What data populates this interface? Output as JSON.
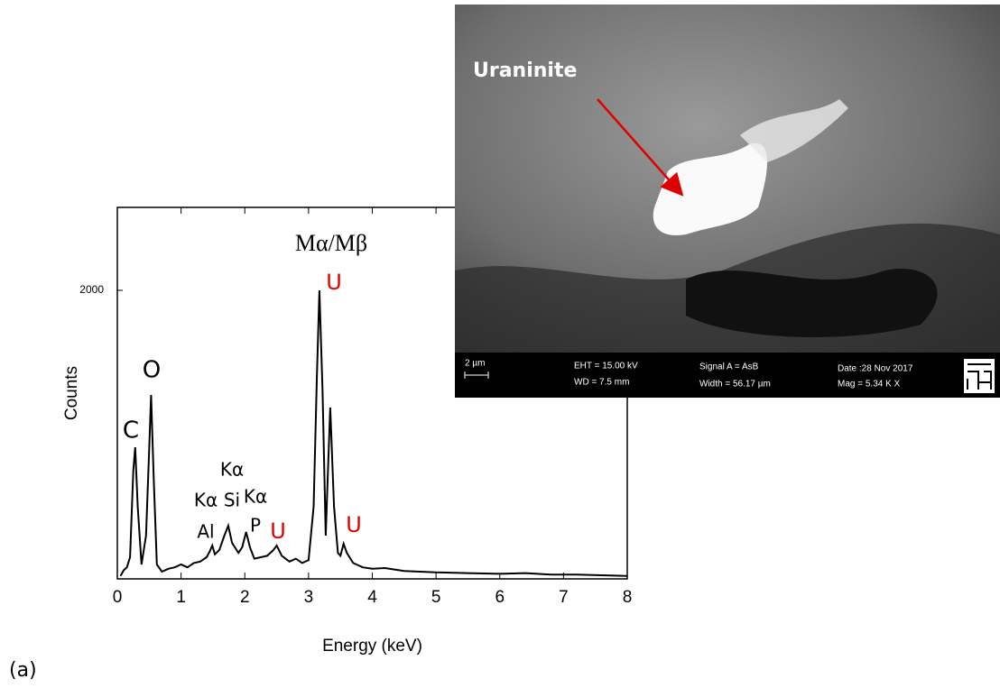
{
  "chart_data": {
    "type": "line",
    "xlabel": "Energy (keV)",
    "ylabel": "Counts",
    "color": "#000000",
    "x": [
      0.05,
      0.1,
      0.15,
      0.2,
      0.25,
      0.28,
      0.32,
      0.38,
      0.45,
      0.5,
      0.53,
      0.57,
      0.62,
      0.7,
      0.8,
      0.9,
      1.0,
      1.1,
      1.2,
      1.3,
      1.4,
      1.45,
      1.49,
      1.53,
      1.6,
      1.68,
      1.74,
      1.8,
      1.9,
      1.96,
      2.02,
      2.08,
      2.15,
      2.25,
      2.35,
      2.45,
      2.5,
      2.58,
      2.7,
      2.8,
      2.9,
      3.0,
      3.08,
      3.13,
      3.17,
      3.22,
      3.27,
      3.3,
      3.34,
      3.4,
      3.46,
      3.5,
      3.55,
      3.6,
      3.7,
      3.85,
      4.0,
      4.2,
      4.5,
      5.0,
      5.5,
      6.0,
      6.4,
      6.8,
      7.2,
      7.6,
      8.0
    ],
    "values": [
      20,
      60,
      80,
      150,
      750,
      912,
      500,
      100,
      300,
      900,
      1275,
      700,
      100,
      50,
      70,
      80,
      100,
      80,
      110,
      120,
      150,
      190,
      231,
      170,
      200,
      300,
      369,
      250,
      180,
      220,
      325,
      220,
      140,
      150,
      160,
      200,
      231,
      160,
      120,
      140,
      110,
      130,
      500,
      1400,
      2000,
      1300,
      300,
      700,
      1188,
      500,
      180,
      160,
      244,
      180,
      110,
      80,
      70,
      75,
      55,
      45,
      40,
      35,
      40,
      30,
      30,
      25,
      20
    ],
    "xlim": [
      0,
      8
    ],
    "xticks": [
      0,
      1,
      2,
      3,
      4,
      5,
      6,
      7,
      8
    ],
    "ylim": [
      0,
      2575
    ],
    "yticks": [
      2000
    ],
    "annotations": [
      {
        "text": "Mα/Mβ",
        "color": "#000000"
      },
      {
        "text": "U",
        "color": "#e00000"
      },
      {
        "text": "O",
        "color": "#000000"
      },
      {
        "text": "C",
        "color": "#000000"
      },
      {
        "text": "Kα",
        "color": "#000000"
      },
      {
        "text": "Kα",
        "color": "#000000"
      },
      {
        "text": "Si",
        "color": "#000000"
      },
      {
        "text": "Kα",
        "color": "#000000"
      },
      {
        "text": "Al",
        "color": "#000000"
      },
      {
        "text": "P",
        "color": "#000000"
      },
      {
        "text": "U",
        "color": "#e00000"
      },
      {
        "text": "U",
        "color": "#e00000"
      }
    ],
    "panel_label": "(a)"
  },
  "inset": {
    "label": "Uraninite",
    "scale": "2 µm",
    "eht": "EHT = 15.00 kV",
    "wd": "WD =  7.5 mm",
    "signal": "Signal A = AsB",
    "width": "Width = 56.17 µm",
    "date": "Date :28 Nov 2017",
    "mag": "Mag =   5.34 K X"
  }
}
